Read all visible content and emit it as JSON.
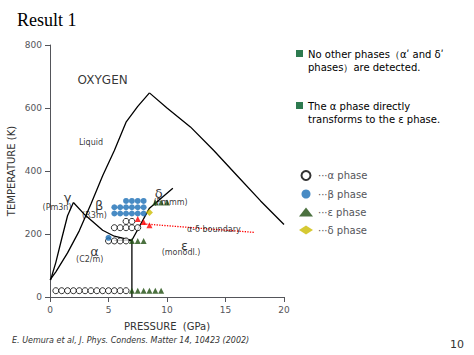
{
  "chart_data": {
    "type": "scatter",
    "title": "Result 1",
    "xlabel": "PRESSURE  (GPa)",
    "ylabel": "TEMPERATURE (K)",
    "xlim": [
      0,
      20
    ],
    "ylim": [
      0,
      800
    ],
    "xticks": [
      0,
      5,
      10,
      15,
      20
    ],
    "yticks": [
      0,
      200,
      400,
      600,
      800
    ],
    "grid": false,
    "legend": "right",
    "series": [
      {
        "type": "line",
        "color": "#000000",
        "line_style": "solid",
        "values": [
          [
            0.0,
            54
          ],
          [
            0.5,
            80
          ],
          [
            1.5,
            140
          ],
          [
            2.5,
            210
          ],
          [
            3.5,
            295
          ],
          [
            4.5,
            385
          ],
          [
            5.5,
            465
          ],
          [
            6.5,
            555
          ],
          [
            7.5,
            605
          ],
          [
            8.5,
            648
          ]
        ]
      },
      {
        "type": "line",
        "color": "#000000",
        "line_style": "solid",
        "values": [
          [
            8.5,
            648
          ],
          [
            10,
            600
          ],
          [
            12,
            540
          ],
          [
            14,
            465
          ],
          [
            16,
            385
          ],
          [
            18,
            305
          ],
          [
            20,
            230
          ]
        ]
      },
      {
        "type": "line",
        "color": "#000000",
        "line_style": "solid",
        "values": [
          [
            0.05,
            54
          ],
          [
            0.5,
            110
          ],
          [
            1.0,
            185
          ],
          [
            1.5,
            258
          ],
          [
            2.0,
            300
          ]
        ]
      },
      {
        "type": "line",
        "color": "#000000",
        "line_style": "solid",
        "values": [
          [
            2.0,
            300
          ],
          [
            3.0,
            260
          ],
          [
            4.5,
            212
          ],
          [
            5.5,
            193
          ],
          [
            7.0,
            180
          ]
        ]
      },
      {
        "type": "line",
        "color": "#000000",
        "line_style": "solid",
        "values": [
          [
            7.0,
            0
          ],
          [
            7.0,
            180
          ]
        ]
      },
      {
        "type": "line",
        "color": "#000000",
        "line_style": "solid",
        "values": [
          [
            5.5,
            180
          ],
          [
            7.0,
            180
          ]
        ]
      },
      {
        "type": "line",
        "color": "#000000",
        "line_style": "solid",
        "values": [
          [
            7.0,
            180
          ],
          [
            8.5,
            282
          ],
          [
            10.5,
            345
          ]
        ]
      },
      {
        "name": "···α phase",
        "type": "scatter",
        "marker": "open_circle",
        "color": "#000000",
        "values": [
          [
            0.5,
            20
          ],
          [
            1.0,
            20
          ],
          [
            1.5,
            20
          ],
          [
            2.0,
            20
          ],
          [
            2.5,
            20
          ],
          [
            3.0,
            20
          ],
          [
            3.5,
            20
          ],
          [
            4.0,
            20
          ],
          [
            4.5,
            20
          ],
          [
            5.0,
            20
          ],
          [
            5.5,
            20
          ],
          [
            6.0,
            20
          ],
          [
            6.5,
            20
          ],
          [
            5.0,
            178
          ],
          [
            5.5,
            178
          ],
          [
            6.0,
            178
          ],
          [
            6.5,
            178
          ],
          [
            5.5,
            220
          ],
          [
            6.0,
            220
          ],
          [
            6.5,
            220
          ],
          [
            7.0,
            220
          ],
          [
            7.5,
            220
          ],
          [
            6.5,
            240
          ],
          [
            7.0,
            240
          ]
        ]
      },
      {
        "name": "···β phase",
        "type": "scatter",
        "marker": "circle",
        "color": "#1a6eb5",
        "values": [
          [
            5.5,
            265
          ],
          [
            6.0,
            265
          ],
          [
            6.5,
            265
          ],
          [
            7.0,
            265
          ],
          [
            7.5,
            265
          ],
          [
            8.0,
            265
          ],
          [
            5.5,
            285
          ],
          [
            6.0,
            285
          ],
          [
            6.5,
            285
          ],
          [
            7.0,
            285
          ],
          [
            7.5,
            285
          ],
          [
            8.0,
            285
          ],
          [
            6.5,
            305
          ],
          [
            7.0,
            305
          ],
          [
            7.5,
            305
          ],
          [
            8.0,
            305
          ],
          [
            5.0,
            188
          ]
        ]
      },
      {
        "name": "···ε phase",
        "type": "scatter",
        "marker": "triangle",
        "color": "#1e4d0f",
        "values": [
          [
            7.0,
            20
          ],
          [
            7.5,
            20
          ],
          [
            8.0,
            20
          ],
          [
            8.5,
            20
          ],
          [
            9.0,
            20
          ],
          [
            9.5,
            20
          ],
          [
            7.0,
            178
          ],
          [
            7.5,
            178
          ],
          [
            8.0,
            178
          ],
          [
            9.0,
            300
          ],
          [
            9.5,
            300
          ],
          [
            10.0,
            300
          ]
        ]
      },
      {
        "name": "···δ phase",
        "type": "scatter",
        "marker": "diamond",
        "color": "#ccbb00",
        "values": [
          [
            8.5,
            268
          ]
        ]
      },
      {
        "type": "scatter",
        "marker": "triangle",
        "color": "red",
        "values": [
          [
            7.5,
            248
          ],
          [
            8.0,
            238
          ],
          [
            8.5,
            228
          ]
        ]
      },
      {
        "type": "line",
        "color": "red",
        "line_style": "dotted",
        "values": [
          [
            8.0,
            232
          ],
          [
            17.5,
            205
          ]
        ]
      }
    ],
    "annotations": [
      {
        "text": "OXYGEN",
        "x": 4.5,
        "y": 690
      },
      {
        "text": "Liquid",
        "x": 3.5,
        "y": 490
      },
      {
        "text": "γ",
        "x": 1.5,
        "y": 315
      },
      {
        "text": "(Pm3n)",
        "x": 0.6,
        "y": 285
      },
      {
        "text": "β",
        "x": 4.2,
        "y": 290
      },
      {
        "text": "(R3m)",
        "x": 3.8,
        "y": 260
      },
      {
        "text": "δ",
        "x": 9.3,
        "y": 330
      },
      {
        "text": "(Fmmm)",
        "x": 10.3,
        "y": 300
      },
      {
        "text": "α",
        "x": 3.8,
        "y": 145
      },
      {
        "text": "(C2/m)",
        "x": 3.4,
        "y": 118
      },
      {
        "text": "ε",
        "x": 11.5,
        "y": 165
      },
      {
        "text": "(monodl.)",
        "x": 11.2,
        "y": 140
      },
      {
        "text": "α-δ boundary",
        "x": 14.0,
        "y": 215
      }
    ],
    "notes": [
      {
        "text": "No other phases（αʹ and δʹ\nphases）are detected.",
        "color": "#2d7a4f"
      },
      {
        "text": "The α phase directly\ntransforms to the ε phase.",
        "color": "#2d7a4f"
      }
    ],
    "source": "E. Uemura et al, J. Phys. Condens. Matter 14, 10423 (2002)",
    "page": "10"
  }
}
